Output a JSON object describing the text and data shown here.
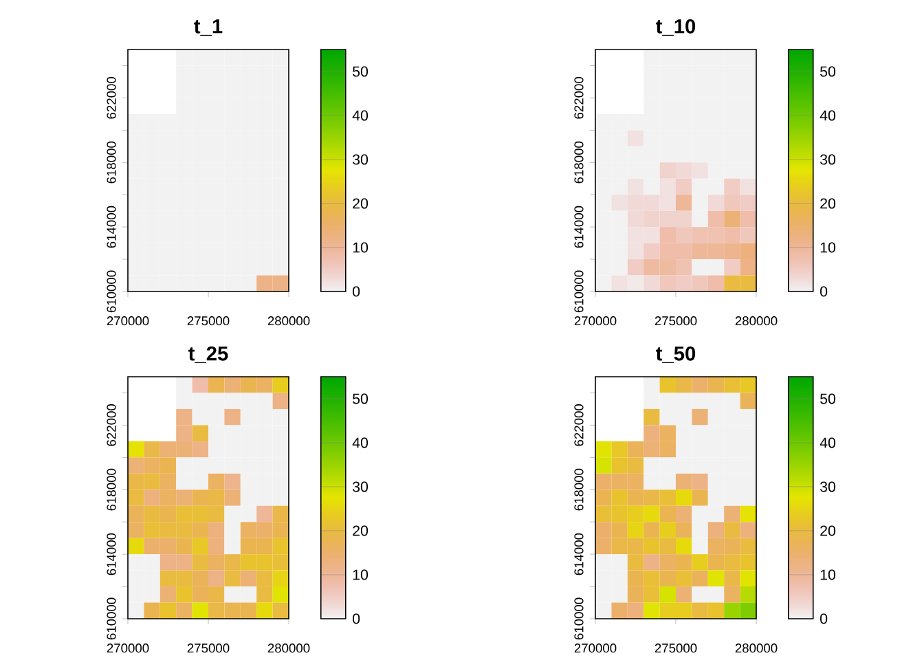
{
  "chart_data": [
    {
      "type": "heatmap",
      "title": "t_1",
      "x": [
        270500,
        271500,
        272500,
        273500,
        274500,
        275500,
        276500,
        277500,
        278500,
        279500
      ],
      "y": [
        624500,
        623500,
        622500,
        621500,
        620500,
        619500,
        618500,
        617500,
        616500,
        615500,
        614500,
        613500,
        612500,
        611500,
        610500
      ],
      "xlim": [
        270000,
        280000
      ],
      "ylim": [
        610000,
        625000
      ],
      "xticks": [
        270000,
        275000,
        280000
      ],
      "yticks": [
        610000,
        {
          "value": 612000,
          "label": null
        },
        614000,
        {
          "value": 616000,
          "label": null
        },
        618000,
        {
          "value": 620000,
          "label": null
        },
        622000,
        {
          "value": 624000,
          "label": null
        }
      ],
      "clim": [
        0,
        55
      ],
      "cticks": [
        0,
        10,
        20,
        30,
        40,
        50
      ],
      "cells": [
        [
          null,
          null,
          null,
          0,
          0,
          0,
          0,
          0,
          0,
          0
        ],
        [
          null,
          null,
          null,
          0,
          0,
          0,
          0,
          0,
          0,
          0
        ],
        [
          null,
          null,
          null,
          0,
          0,
          0,
          0,
          0,
          0,
          0
        ],
        [
          null,
          null,
          null,
          0,
          0,
          0,
          0,
          0,
          0,
          0
        ],
        [
          0,
          0,
          0,
          0,
          0,
          0,
          0,
          0,
          0,
          0
        ],
        [
          0,
          0,
          0,
          0,
          0,
          0,
          0,
          0,
          0,
          0
        ],
        [
          0,
          0,
          0,
          0,
          0,
          0,
          0,
          0,
          0,
          0
        ],
        [
          0,
          0,
          0,
          0,
          0,
          0,
          0,
          0,
          0,
          0
        ],
        [
          0,
          0,
          0,
          0,
          0,
          0,
          0,
          0,
          0,
          0
        ],
        [
          0,
          0,
          0,
          0,
          0,
          0,
          0,
          0,
          0,
          0
        ],
        [
          0,
          0,
          0,
          0,
          0,
          0,
          0,
          0,
          0,
          0
        ],
        [
          0,
          0,
          0,
          0,
          0,
          0,
          0,
          0,
          0,
          0
        ],
        [
          0,
          0,
          0,
          0,
          0,
          0,
          0,
          0,
          0,
          0
        ],
        [
          0,
          0,
          0,
          0,
          0,
          0,
          0,
          0,
          0,
          0
        ],
        [
          0,
          0,
          0,
          0,
          0,
          0,
          0,
          0,
          12,
          12
        ]
      ]
    },
    {
      "type": "heatmap",
      "title": "t_10",
      "x": [
        270500,
        271500,
        272500,
        273500,
        274500,
        275500,
        276500,
        277500,
        278500,
        279500
      ],
      "y": [
        624500,
        623500,
        622500,
        621500,
        620500,
        619500,
        618500,
        617500,
        616500,
        615500,
        614500,
        613500,
        612500,
        611500,
        610500
      ],
      "xlim": [
        270000,
        280000
      ],
      "ylim": [
        610000,
        625000
      ],
      "xticks": [
        270000,
        275000,
        280000
      ],
      "yticks": [
        610000,
        {
          "value": 612000,
          "label": null
        },
        614000,
        {
          "value": 616000,
          "label": null
        },
        618000,
        {
          "value": 620000,
          "label": null
        },
        622000,
        {
          "value": 624000,
          "label": null
        }
      ],
      "clim": [
        0,
        55
      ],
      "cticks": [
        0,
        10,
        20,
        30,
        40,
        50
      ],
      "cells": [
        [
          null,
          null,
          null,
          0,
          0,
          0,
          0,
          0,
          0,
          0
        ],
        [
          null,
          null,
          null,
          0,
          0,
          0,
          0,
          0,
          0,
          0
        ],
        [
          null,
          null,
          null,
          0,
          0,
          0,
          0,
          0,
          0,
          0
        ],
        [
          null,
          null,
          null,
          0,
          0,
          0,
          0,
          0,
          0,
          0
        ],
        [
          0,
          0,
          0,
          0,
          0,
          0,
          0,
          0,
          0,
          0
        ],
        [
          0,
          0,
          2,
          0,
          0,
          0,
          0,
          0,
          0,
          0
        ],
        [
          0,
          0,
          0,
          0,
          0,
          0,
          0,
          0,
          0,
          0
        ],
        [
          0,
          0,
          0,
          0,
          4,
          3,
          2,
          0,
          0,
          0
        ],
        [
          0,
          0,
          2,
          0,
          2,
          5,
          0,
          0,
          5,
          2
        ],
        [
          0,
          2,
          3,
          3,
          2,
          10,
          0,
          3,
          6,
          5
        ],
        [
          0,
          0,
          3,
          4,
          4,
          4,
          0,
          8,
          14,
          8
        ],
        [
          0,
          0,
          2,
          2,
          8,
          6,
          7,
          7,
          8,
          6
        ],
        [
          0,
          0,
          2,
          5,
          8,
          8,
          10,
          10,
          11,
          13
        ],
        [
          0,
          0,
          5,
          9,
          9,
          7,
          0,
          0,
          5,
          12
        ],
        [
          0,
          2,
          1,
          3,
          6,
          5,
          6,
          8,
          20,
          20
        ]
      ]
    },
    {
      "type": "heatmap",
      "title": "t_25",
      "x": [
        270500,
        271500,
        272500,
        273500,
        274500,
        275500,
        276500,
        277500,
        278500,
        279500
      ],
      "y": [
        624500,
        623500,
        622500,
        621500,
        620500,
        619500,
        618500,
        617500,
        616500,
        615500,
        614500,
        613500,
        612500,
        611500,
        610500
      ],
      "xlim": [
        270000,
        280000
      ],
      "ylim": [
        610000,
        625000
      ],
      "xticks": [
        270000,
        275000,
        280000
      ],
      "yticks": [
        610000,
        {
          "value": 612000,
          "label": null
        },
        614000,
        {
          "value": 616000,
          "label": null
        },
        618000,
        {
          "value": 620000,
          "label": null
        },
        622000,
        {
          "value": 624000,
          "label": null
        }
      ],
      "clim": [
        0,
        55
      ],
      "cticks": [
        0,
        10,
        20,
        30,
        40,
        50
      ],
      "cells": [
        [
          null,
          null,
          null,
          0,
          8,
          18,
          14,
          18,
          16,
          24
        ],
        [
          null,
          null,
          null,
          0,
          0,
          0,
          0,
          0,
          0,
          12
        ],
        [
          null,
          null,
          null,
          12,
          0,
          0,
          12,
          0,
          0,
          0
        ],
        [
          null,
          null,
          null,
          12,
          20,
          0,
          0,
          0,
          0,
          0
        ],
        [
          27,
          19,
          14,
          14,
          12,
          0,
          0,
          0,
          0,
          0
        ],
        [
          14,
          16,
          18,
          0,
          0,
          0,
          0,
          0,
          0,
          0
        ],
        [
          19,
          20,
          16,
          0,
          0,
          16,
          11,
          0,
          0,
          0
        ],
        [
          20,
          13,
          16,
          14,
          18,
          19,
          14,
          0,
          0,
          0
        ],
        [
          17,
          20,
          18,
          21,
          21,
          20,
          0,
          0,
          10,
          19
        ],
        [
          16,
          21,
          20,
          20,
          18,
          13,
          0,
          16,
          15,
          18
        ],
        [
          26,
          15,
          15,
          18,
          23,
          13,
          0,
          18,
          18,
          22
        ],
        [
          0,
          0,
          12,
          12,
          20,
          16,
          19,
          22,
          22,
          21
        ],
        [
          0,
          0,
          20,
          20,
          17,
          12,
          20,
          14,
          20,
          25
        ],
        [
          0,
          0,
          14,
          22,
          17,
          19,
          0,
          0,
          20,
          28
        ],
        [
          0,
          18,
          22,
          16,
          28,
          19,
          18,
          18,
          26,
          20
        ]
      ]
    },
    {
      "type": "heatmap",
      "title": "t_50",
      "x": [
        270500,
        271500,
        272500,
        273500,
        274500,
        275500,
        276500,
        277500,
        278500,
        279500
      ],
      "y": [
        624500,
        623500,
        622500,
        621500,
        620500,
        619500,
        618500,
        617500,
        616500,
        615500,
        614500,
        613500,
        612500,
        611500,
        610500
      ],
      "xlim": [
        270000,
        280000
      ],
      "ylim": [
        610000,
        625000
      ],
      "xticks": [
        270000,
        275000,
        280000
      ],
      "yticks": [
        610000,
        {
          "value": 612000,
          "label": null
        },
        614000,
        {
          "value": 616000,
          "label": null
        },
        618000,
        {
          "value": 620000,
          "label": null
        },
        622000,
        {
          "value": 624000,
          "label": null
        }
      ],
      "clim": [
        0,
        55
      ],
      "cticks": [
        0,
        10,
        20,
        30,
        40,
        50
      ],
      "cells": [
        [
          null,
          null,
          null,
          0,
          22,
          19,
          15,
          18,
          21,
          23
        ],
        [
          null,
          null,
          null,
          0,
          0,
          0,
          0,
          0,
          0,
          17
        ],
        [
          null,
          null,
          null,
          20,
          0,
          0,
          14,
          0,
          0,
          0
        ],
        [
          null,
          null,
          null,
          13,
          16,
          0,
          0,
          0,
          0,
          0
        ],
        [
          28,
          23,
          17,
          14,
          16,
          0,
          0,
          0,
          0,
          0
        ],
        [
          29,
          22,
          20,
          0,
          0,
          0,
          0,
          0,
          0,
          0
        ],
        [
          15,
          16,
          16,
          0,
          0,
          14,
          12,
          0,
          0,
          0
        ],
        [
          18,
          22,
          18,
          19,
          21,
          26,
          18,
          0,
          0,
          0
        ],
        [
          21,
          22,
          24,
          26,
          18,
          14,
          0,
          0,
          14,
          27
        ],
        [
          15,
          18,
          25,
          18,
          24,
          17,
          0,
          13,
          20,
          13
        ],
        [
          15,
          19,
          19,
          22,
          20,
          26,
          0,
          16,
          17,
          20
        ],
        [
          0,
          0,
          20,
          12,
          16,
          18,
          24,
          18,
          20,
          22
        ],
        [
          0,
          0,
          18,
          21,
          18,
          21,
          17,
          28,
          19,
          28
        ],
        [
          0,
          0,
          17,
          21,
          29,
          14,
          0,
          0,
          16,
          32
        ],
        [
          0,
          15,
          13,
          28,
          24,
          24,
          20,
          22,
          35,
          38
        ]
      ]
    }
  ]
}
